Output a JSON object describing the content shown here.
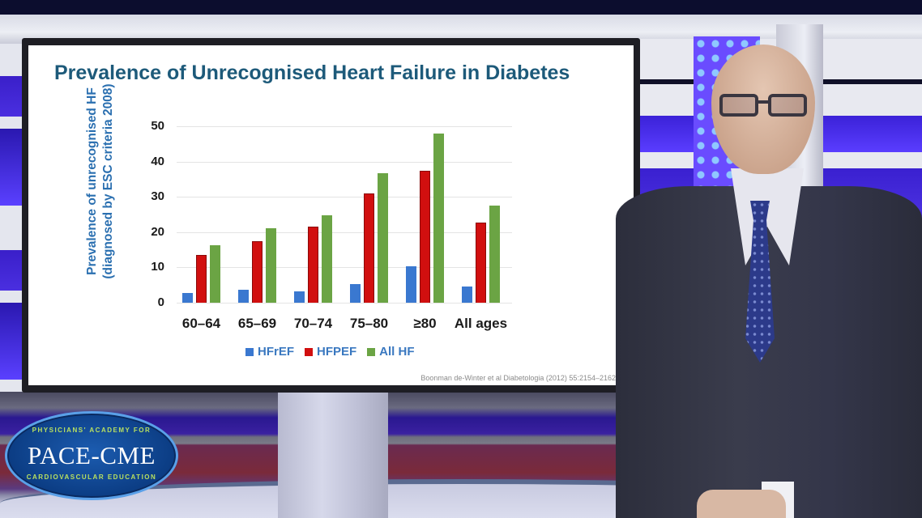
{
  "slide": {
    "title": "Prevalence of Unrecognised Heart Failure in Diabetes",
    "y_label_line1": "Prevalence of unrecognised HF",
    "y_label_line2": "(diagnosed by ESC criteria 2008)",
    "citation": "Boonman de-Winter et al Diabetologia (2012) 55:2154–2162"
  },
  "legend": [
    {
      "label": "HFrEF",
      "color": "#3a78d0"
    },
    {
      "label": "HFPEF",
      "color": "#d10f0f"
    },
    {
      "label": "All HF",
      "color": "#6ba444"
    }
  ],
  "logo": {
    "top_text": "PHYSICIANS' ACADEMY FOR",
    "main_text": "PACE-CME",
    "bottom_text": "CARDIOVASCULAR EDUCATION"
  },
  "chart_data": {
    "type": "bar",
    "title": "Prevalence of Unrecognised Heart Failure in Diabetes",
    "xlabel": "",
    "ylabel": "Prevalence of unrecognised HF (diagnosed by ESC criteria 2008)",
    "categories": [
      "60–64",
      "65–69",
      "70–74",
      "75–80",
      "≥80",
      "All ages"
    ],
    "series": [
      {
        "name": "HFrEF",
        "color": "#3a78d0",
        "values": [
          2.7,
          3.7,
          3.3,
          5.2,
          10.3,
          4.6
        ]
      },
      {
        "name": "HFPEF",
        "color": "#d10f0f",
        "values": [
          13.6,
          17.5,
          21.5,
          30.9,
          37.3,
          22.6
        ]
      },
      {
        "name": "All HF",
        "color": "#6ba444",
        "values": [
          16.4,
          21.2,
          24.8,
          36.6,
          47.9,
          27.5
        ]
      }
    ],
    "yticks": [
      0,
      10,
      20,
      30,
      40,
      50
    ],
    "ylim": [
      0,
      50
    ],
    "grid": true,
    "legend_position": "bottom",
    "source": "Boonman de-Winter et al Diabetologia (2012) 55:2154–2162"
  }
}
